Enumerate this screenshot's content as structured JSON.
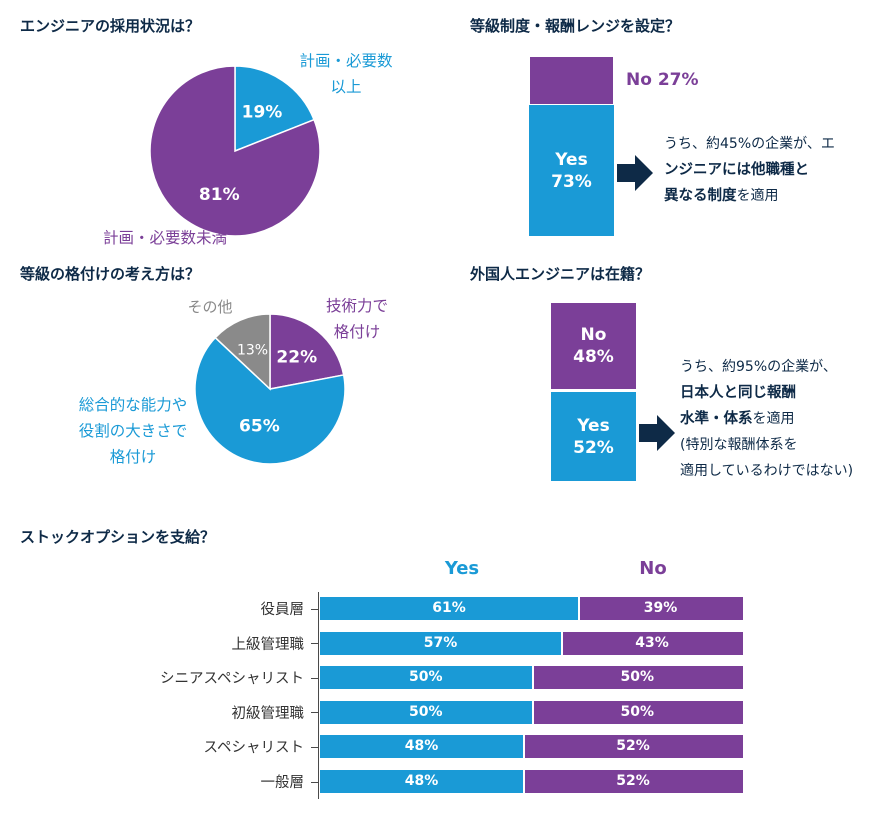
{
  "colors": {
    "blue": "#1a9ad6",
    "purple": "#7b3f98",
    "gray": "#8a8a8a",
    "navy": "#0e2a47"
  },
  "q1": {
    "title": "エンジニアの採用状況は？",
    "label_top_1": "計画・必要数",
    "label_top_2": "以上",
    "label_bottom": "計画・必要数未満"
  },
  "q2": {
    "title": "等級制度・報酬レンジを設定？",
    "no_label": "No 27%",
    "yes_label": "Yes",
    "yes_value": "73%",
    "note_line1": "うち、約45%の企業が、エ",
    "note_line2_bold": "ンジニアには他職種と",
    "note_line3_bold": "異なる制度",
    "note_line3_rest": "を適用"
  },
  "q3": {
    "title": "等級の格付けの考え方は？",
    "label_tech_1": "技術力で",
    "label_tech_2": "格付け",
    "label_other": "その他",
    "label_total_1": "総合的な能力や",
    "label_total_2": "役割の大きさで",
    "label_total_3": "格付け"
  },
  "q4": {
    "title": "外国人エンジニアは在籍？",
    "no_label": "No",
    "no_value": "48%",
    "yes_label": "Yes",
    "yes_value": "52%",
    "note_line1": "うち、約95%の企業が、",
    "note_line2_bold": "日本人と同じ報酬",
    "note_line3_bold": "水準・体系",
    "note_line3_rest": "を適用",
    "note_line4": "(特別な報酬体系を",
    "note_line5": "適用しているわけではない)"
  },
  "q5": {
    "title": "ストックオプションを支給？",
    "legend_yes": "Yes",
    "legend_no": "No"
  },
  "chart_data": [
    {
      "type": "pie",
      "title": "エンジニアの採用状況は？",
      "categories": [
        "計画・必要数以上",
        "計画・必要数未満"
      ],
      "values": [
        19,
        81
      ],
      "labels": [
        "19%",
        "81%"
      ],
      "colors": [
        "#1a9ad6",
        "#7b3f98"
      ]
    },
    {
      "type": "bar",
      "title": "等級制度・報酬レンジを設定？",
      "categories": [
        "Yes",
        "No"
      ],
      "values": [
        73,
        27
      ]
    },
    {
      "type": "pie",
      "title": "等級の格付けの考え方は？",
      "categories": [
        "技術力で格付け",
        "総合的な能力や役割の大きさで格付け",
        "その他"
      ],
      "values": [
        22,
        65,
        13
      ],
      "labels": [
        "22%",
        "65%",
        "13%"
      ],
      "colors": [
        "#7b3f98",
        "#1a9ad6",
        "#8a8a8a"
      ]
    },
    {
      "type": "bar",
      "title": "外国人エンジニアは在籍？",
      "categories": [
        "No",
        "Yes"
      ],
      "values": [
        48,
        52
      ]
    },
    {
      "type": "bar",
      "stacked": true,
      "orientation": "horizontal",
      "title": "ストックオプションを支給？",
      "categories": [
        "役員層",
        "上級管理職",
        "シニアスペシャリスト",
        "初級管理職",
        "スペシャリスト",
        "一般層"
      ],
      "series": [
        {
          "name": "Yes",
          "values": [
            61,
            57,
            50,
            50,
            48,
            48
          ],
          "labels": [
            "61%",
            "57%",
            "50%",
            "50%",
            "48%",
            "48%"
          ]
        },
        {
          "name": "No",
          "values": [
            39,
            43,
            50,
            50,
            52,
            52
          ],
          "labels": [
            "39%",
            "43%",
            "50%",
            "50%",
            "52%",
            "52%"
          ]
        }
      ],
      "xlim": [
        0,
        100
      ]
    }
  ]
}
